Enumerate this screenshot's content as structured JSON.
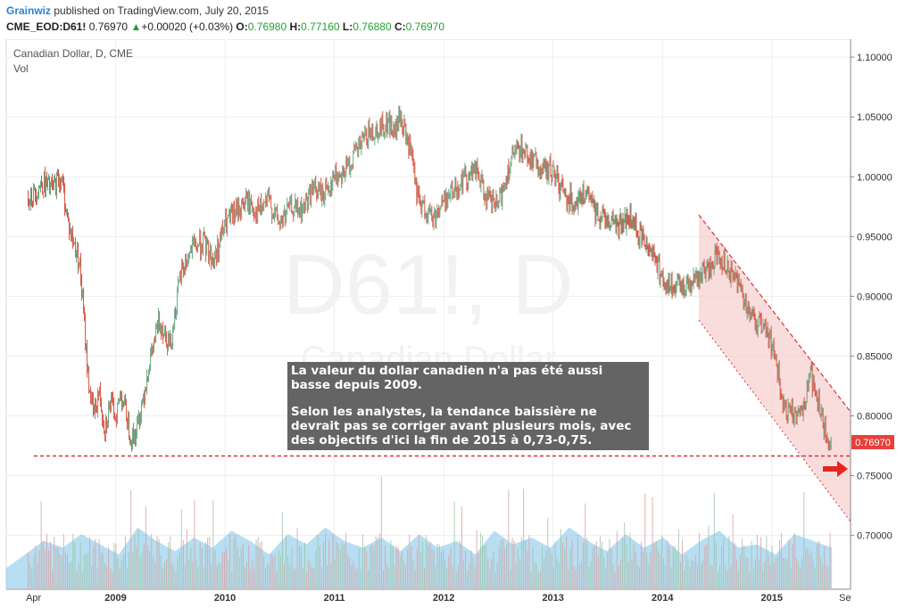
{
  "header": {
    "author": "Grainwiz",
    "published": " published on TradingView.com, July 20, 2015",
    "symbol": "CME_EOD:D61!",
    "last": "0.76970",
    "change": "+0.00020 (+0.03%)",
    "o_label": "O:",
    "o_value": "0.76980",
    "h_label": "H:",
    "h_value": "0.77160",
    "l_label": "L:",
    "l_value": "0.76880",
    "c_label": "C:",
    "c_value": "0.76970"
  },
  "legend": {
    "title": "Canadian Dollar, D, CME",
    "volume": "Vol"
  },
  "watermark": {
    "line1": "D61!, D",
    "line2": "Canadian Dollar"
  },
  "annotation": {
    "p1": "La valeur du dollar canadien n'a pas été aussi basse depuis 2009.",
    "p2": "Selon les analystes, la tendance baissière ne devrait pas se corriger avant plusieurs mois, avec des objectifs d'ici la fin de 2015 à 0,73-0,75."
  },
  "price_tag": "0.76970",
  "chart_data": {
    "type": "line",
    "title": "Canadian Dollar, D, CME",
    "x_ticks": [
      "Apr",
      "2009",
      "2010",
      "2011",
      "2012",
      "2013",
      "2014",
      "2015",
      "Se"
    ],
    "y_ticks": [
      "1.10000",
      "1.05000",
      "1.00000",
      "0.95000",
      "0.90000",
      "0.85000",
      "0.80000",
      "0.75000",
      "0.70000"
    ],
    "ylim": [
      0.655,
      1.115
    ],
    "x": [
      2008.25,
      2008.33,
      2008.42,
      2008.5,
      2008.58,
      2008.67,
      2008.75,
      2008.8,
      2008.85,
      2008.9,
      2008.95,
      2009.0,
      2009.05,
      2009.1,
      2009.15,
      2009.2,
      2009.3,
      2009.4,
      2009.5,
      2009.6,
      2009.7,
      2009.8,
      2009.9,
      2010.0,
      2010.1,
      2010.2,
      2010.3,
      2010.4,
      2010.5,
      2010.6,
      2010.7,
      2010.8,
      2010.9,
      2011.0,
      2011.1,
      2011.2,
      2011.3,
      2011.4,
      2011.5,
      2011.55,
      2011.6,
      2011.7,
      2011.75,
      2011.8,
      2011.9,
      2012.0,
      2012.1,
      2012.2,
      2012.3,
      2012.4,
      2012.5,
      2012.6,
      2012.7,
      2012.8,
      2012.9,
      2013.0,
      2013.1,
      2013.2,
      2013.3,
      2013.4,
      2013.5,
      2013.6,
      2013.7,
      2013.8,
      2013.9,
      2014.0,
      2014.1,
      2014.2,
      2014.3,
      2014.4,
      2014.5,
      2014.6,
      2014.7,
      2014.8,
      2014.9,
      2015.0,
      2015.05,
      2015.1,
      2015.2,
      2015.3,
      2015.35,
      2015.4,
      2015.45,
      2015.5,
      2015.55
    ],
    "series": [
      {
        "values": [
          0.985,
          0.995,
          0.99,
          1.0,
          0.955,
          0.93,
          0.83,
          0.8,
          0.82,
          0.79,
          0.81,
          0.8,
          0.82,
          0.8,
          0.78,
          0.79,
          0.84,
          0.88,
          0.86,
          0.92,
          0.94,
          0.945,
          0.93,
          0.96,
          0.97,
          0.98,
          0.97,
          0.98,
          0.96,
          0.975,
          0.97,
          0.99,
          0.985,
          1.0,
          1.005,
          1.02,
          1.035,
          1.04,
          1.045,
          1.035,
          1.05,
          1.02,
          0.985,
          0.975,
          0.965,
          0.98,
          0.99,
          1.0,
          1.005,
          0.98,
          0.975,
          1.01,
          1.025,
          1.015,
          1.005,
          1.005,
          0.985,
          0.98,
          0.985,
          0.97,
          0.965,
          0.96,
          0.965,
          0.95,
          0.94,
          0.915,
          0.905,
          0.91,
          0.915,
          0.92,
          0.935,
          0.925,
          0.91,
          0.885,
          0.875,
          0.86,
          0.84,
          0.805,
          0.8,
          0.81,
          0.835,
          0.82,
          0.8,
          0.785,
          0.77
        ]
      }
    ],
    "volume_band": [
      0.3,
      0.5,
      0.7,
      0.6,
      0.8,
      0.65,
      0.5,
      0.9,
      0.7,
      0.55,
      0.75,
      0.6,
      0.85,
      0.7,
      0.5,
      0.8,
      0.65,
      0.9,
      0.7,
      0.6,
      0.75,
      0.55,
      0.8,
      0.6,
      0.7,
      0.5,
      0.85,
      0.65,
      0.75,
      0.6,
      0.9,
      0.7,
      0.55,
      0.8,
      0.6,
      0.75,
      0.5,
      0.7,
      0.85,
      0.6,
      0.65,
      0.5,
      0.8,
      0.7,
      0.6
    ]
  },
  "colors": {
    "up_candle": "#6ba583",
    "down_candle": "#d75442",
    "volume": "#7cc2e8",
    "channel_fill": "#f7cfcf",
    "channel_line": "#e03030",
    "support_line": "#e03030",
    "tag_bg": "#e8403a"
  }
}
